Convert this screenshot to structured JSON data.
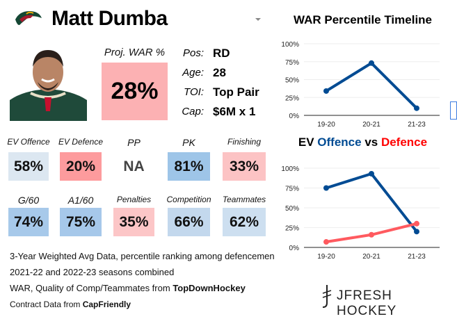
{
  "header": {
    "team_logo": "minnesota-wild-logo",
    "player_name": "Matt Dumba",
    "dropdown_icon": "caret-down-icon"
  },
  "proj_war": {
    "label": "Proj. WAR %",
    "value": "28%",
    "color": "#fcb1b3"
  },
  "info": [
    {
      "label": "Pos:",
      "value": "RD"
    },
    {
      "label": "Age:",
      "value": "28"
    },
    {
      "label": "TOI:",
      "value": "Top Pair"
    },
    {
      "label": "Cap:",
      "value": "$6M x 1"
    }
  ],
  "tiles": [
    {
      "label": "EV Offence",
      "value": "58%",
      "color": "#dce7f1"
    },
    {
      "label": "EV Defence",
      "value": "20%",
      "color": "#fd9b9d"
    },
    {
      "label": "PP",
      "value": "NA",
      "color": "#ffffff"
    },
    {
      "label": "PK",
      "value": "81%",
      "color": "#9ec5e8"
    },
    {
      "label": "Finishing",
      "value": "33%",
      "color": "#fcc3c4"
    },
    {
      "label": "G/60",
      "value": "74%",
      "color": "#a7c9ea"
    },
    {
      "label": "A1/60",
      "value": "75%",
      "color": "#a6c8ea"
    },
    {
      "label": "Penalties",
      "value": "35%",
      "color": "#fcc6c7"
    },
    {
      "label": "Competition",
      "value": "66%",
      "color": "#c3d8ed"
    },
    {
      "label": "Teammates",
      "value": "62%",
      "color": "#cddff0"
    }
  ],
  "footer": {
    "line1": "3-Year Weighted Avg Data, percentile ranking among defencemen",
    "line2": "2021-22 and 2022-23 seasons combined",
    "line3_prefix": "WAR, Quality of Comp/Teammates from ",
    "line3_source": "TopDownHockey",
    "line4_prefix": "Contract Data from ",
    "line4_source": "CapFriendly"
  },
  "brand": {
    "name": "JFRESH HOCKEY"
  },
  "chart_data": [
    {
      "type": "line",
      "title": "WAR Percentile Timeline",
      "categories": [
        "19-20",
        "20-21",
        "21-23"
      ],
      "yticks": [
        "0%",
        "25%",
        "50%",
        "75%",
        "100%"
      ],
      "ylim": [
        0,
        100
      ],
      "grid": true,
      "series": [
        {
          "values": [
            34,
            73,
            10
          ],
          "color": "#004b93"
        }
      ]
    },
    {
      "type": "line",
      "title_parts": [
        {
          "text": "EV ",
          "color": "#000000"
        },
        {
          "text": "Offence",
          "color": "#004b93"
        },
        {
          "text": " vs ",
          "color": "#000000"
        },
        {
          "text": "Defence",
          "color": "#ff0000"
        }
      ],
      "categories": [
        "19-20",
        "20-21",
        "21-23"
      ],
      "yticks": [
        "0%",
        "25%",
        "50%",
        "75%",
        "100%"
      ],
      "ylim": [
        0,
        100
      ],
      "grid": true,
      "series": [
        {
          "name": "Offence",
          "values": [
            75,
            93,
            20
          ],
          "color": "#004b93"
        },
        {
          "name": "Defence",
          "values": [
            7,
            16,
            30
          ],
          "color": "#ff5a5f"
        }
      ]
    }
  ]
}
